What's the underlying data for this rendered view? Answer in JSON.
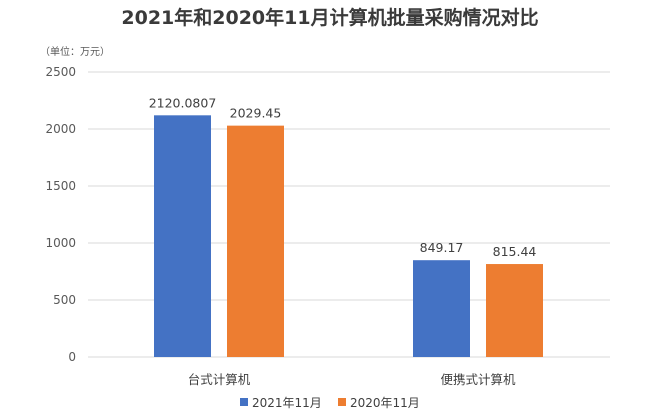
{
  "chart_data": {
    "type": "bar",
    "title": "2021年和2020年11月计算机批量采购情况对比",
    "unit_label": "（单位：万元）",
    "categories": [
      "台式计算机",
      "便携式计算机"
    ],
    "series": [
      {
        "name": "2021年11月",
        "values": [
          2120.0807,
          849.17
        ],
        "labels": [
          "2120.0807",
          "849.17"
        ],
        "color": "#4472C4"
      },
      {
        "name": "2020年11月",
        "values": [
          2029.45,
          815.44
        ],
        "labels": [
          "2029.45",
          "815.44"
        ],
        "color": "#ED7D31"
      }
    ],
    "ylim": [
      0,
      2500
    ],
    "yticks": [
      0,
      500,
      1000,
      1500,
      2000,
      2500
    ],
    "grid": true,
    "legend_position": "bottom"
  }
}
